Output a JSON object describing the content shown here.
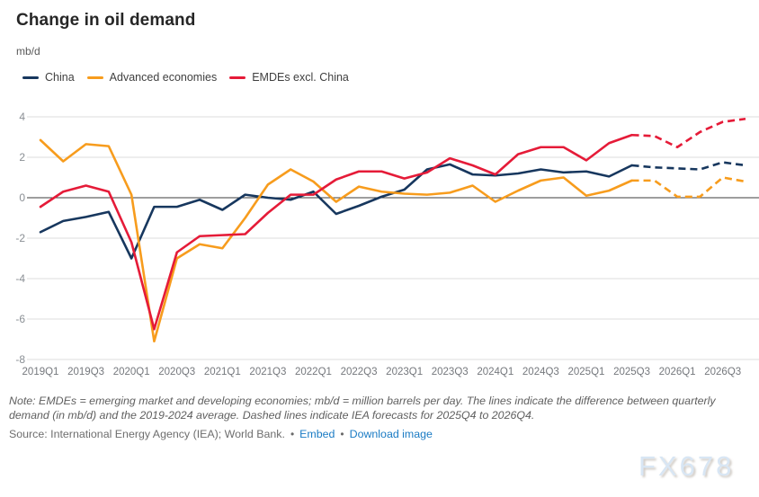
{
  "header": {
    "title": "Change in oil demand",
    "unit": "mb/d"
  },
  "legend": {
    "items": [
      {
        "label": "China",
        "color": "#17375E"
      },
      {
        "label": "Advanced economies",
        "color": "#F79C1D"
      },
      {
        "label": "EMDEs excl. China",
        "color": "#E51B38"
      }
    ]
  },
  "chart_data": {
    "type": "line",
    "title": "Change in oil demand",
    "ylabel": "mb/d",
    "xlabel": "",
    "ylim": [
      -8,
      4
    ],
    "yticks": [
      4,
      2,
      0,
      -2,
      -4,
      -6,
      -8
    ],
    "grid": true,
    "legend_position": "top-left",
    "x_tick_every": 2,
    "forecast_start_index": 27,
    "forecast_note": "Dashed segments are IEA forecasts for 2025Q4 to 2026Q4",
    "categories": [
      "2019Q1",
      "2019Q2",
      "2019Q3",
      "2019Q4",
      "2020Q1",
      "2020Q2",
      "2020Q3",
      "2020Q4",
      "2021Q1",
      "2021Q2",
      "2021Q3",
      "2021Q4",
      "2022Q1",
      "2022Q2",
      "2022Q3",
      "2022Q4",
      "2023Q1",
      "2023Q2",
      "2023Q3",
      "2023Q4",
      "2024Q1",
      "2024Q2",
      "2024Q3",
      "2024Q4",
      "2025Q1",
      "2025Q2",
      "2025Q3",
      "2025Q4",
      "2026Q1",
      "2026Q2",
      "2026Q3",
      "2026Q4"
    ],
    "series": [
      {
        "name": "China",
        "color": "#17375E",
        "values": [
          -1.7,
          -1.15,
          -0.95,
          -0.7,
          -3.0,
          -0.45,
          -0.45,
          -0.1,
          -0.6,
          0.15,
          0.0,
          -0.1,
          0.3,
          -0.8,
          -0.4,
          0.05,
          0.4,
          1.4,
          1.65,
          1.15,
          1.1,
          1.2,
          1.4,
          1.25,
          1.3,
          1.05,
          1.6,
          1.5,
          1.45,
          1.4,
          1.75,
          1.6
        ]
      },
      {
        "name": "Advanced economies",
        "color": "#F79C1D",
        "values": [
          2.85,
          1.8,
          2.65,
          2.55,
          0.15,
          -7.1,
          -3.0,
          -2.3,
          -2.5,
          -1.0,
          0.65,
          1.4,
          0.8,
          -0.2,
          0.55,
          0.3,
          0.2,
          0.15,
          0.25,
          0.6,
          -0.2,
          0.35,
          0.85,
          1.0,
          0.1,
          0.35,
          0.85,
          0.85,
          0.05,
          0.05,
          1.0,
          0.8
        ]
      },
      {
        "name": "EMDEs excl. China",
        "color": "#E51B38",
        "values": [
          -0.45,
          0.3,
          0.6,
          0.3,
          -2.2,
          -6.5,
          -2.7,
          -1.9,
          -1.85,
          -1.8,
          -0.75,
          0.15,
          0.15,
          0.9,
          1.3,
          1.3,
          0.95,
          1.25,
          1.95,
          1.6,
          1.15,
          2.15,
          2.5,
          2.5,
          1.85,
          2.7,
          3.1,
          3.05,
          2.5,
          3.25,
          3.75,
          3.9
        ]
      }
    ]
  },
  "footer": {
    "note": "Note: EMDEs = emerging market and developing economies; mb/d = million barrels per day. The lines indicate the difference between quarterly demand (in mb/d) and the 2019-2024 average. Dashed lines indicate IEA forecasts for 2025Q4 to 2026Q4.",
    "source": "Source: International Energy Agency (IEA); World Bank.",
    "separator": "•",
    "links": [
      {
        "label": "Embed"
      },
      {
        "label": "Download image"
      }
    ]
  },
  "watermark": "FX678",
  "colors": {
    "gridline": "#dedede",
    "zero_line": "#3d3d3d",
    "tick_text": "#75787d",
    "link": "#1a7bc4"
  }
}
